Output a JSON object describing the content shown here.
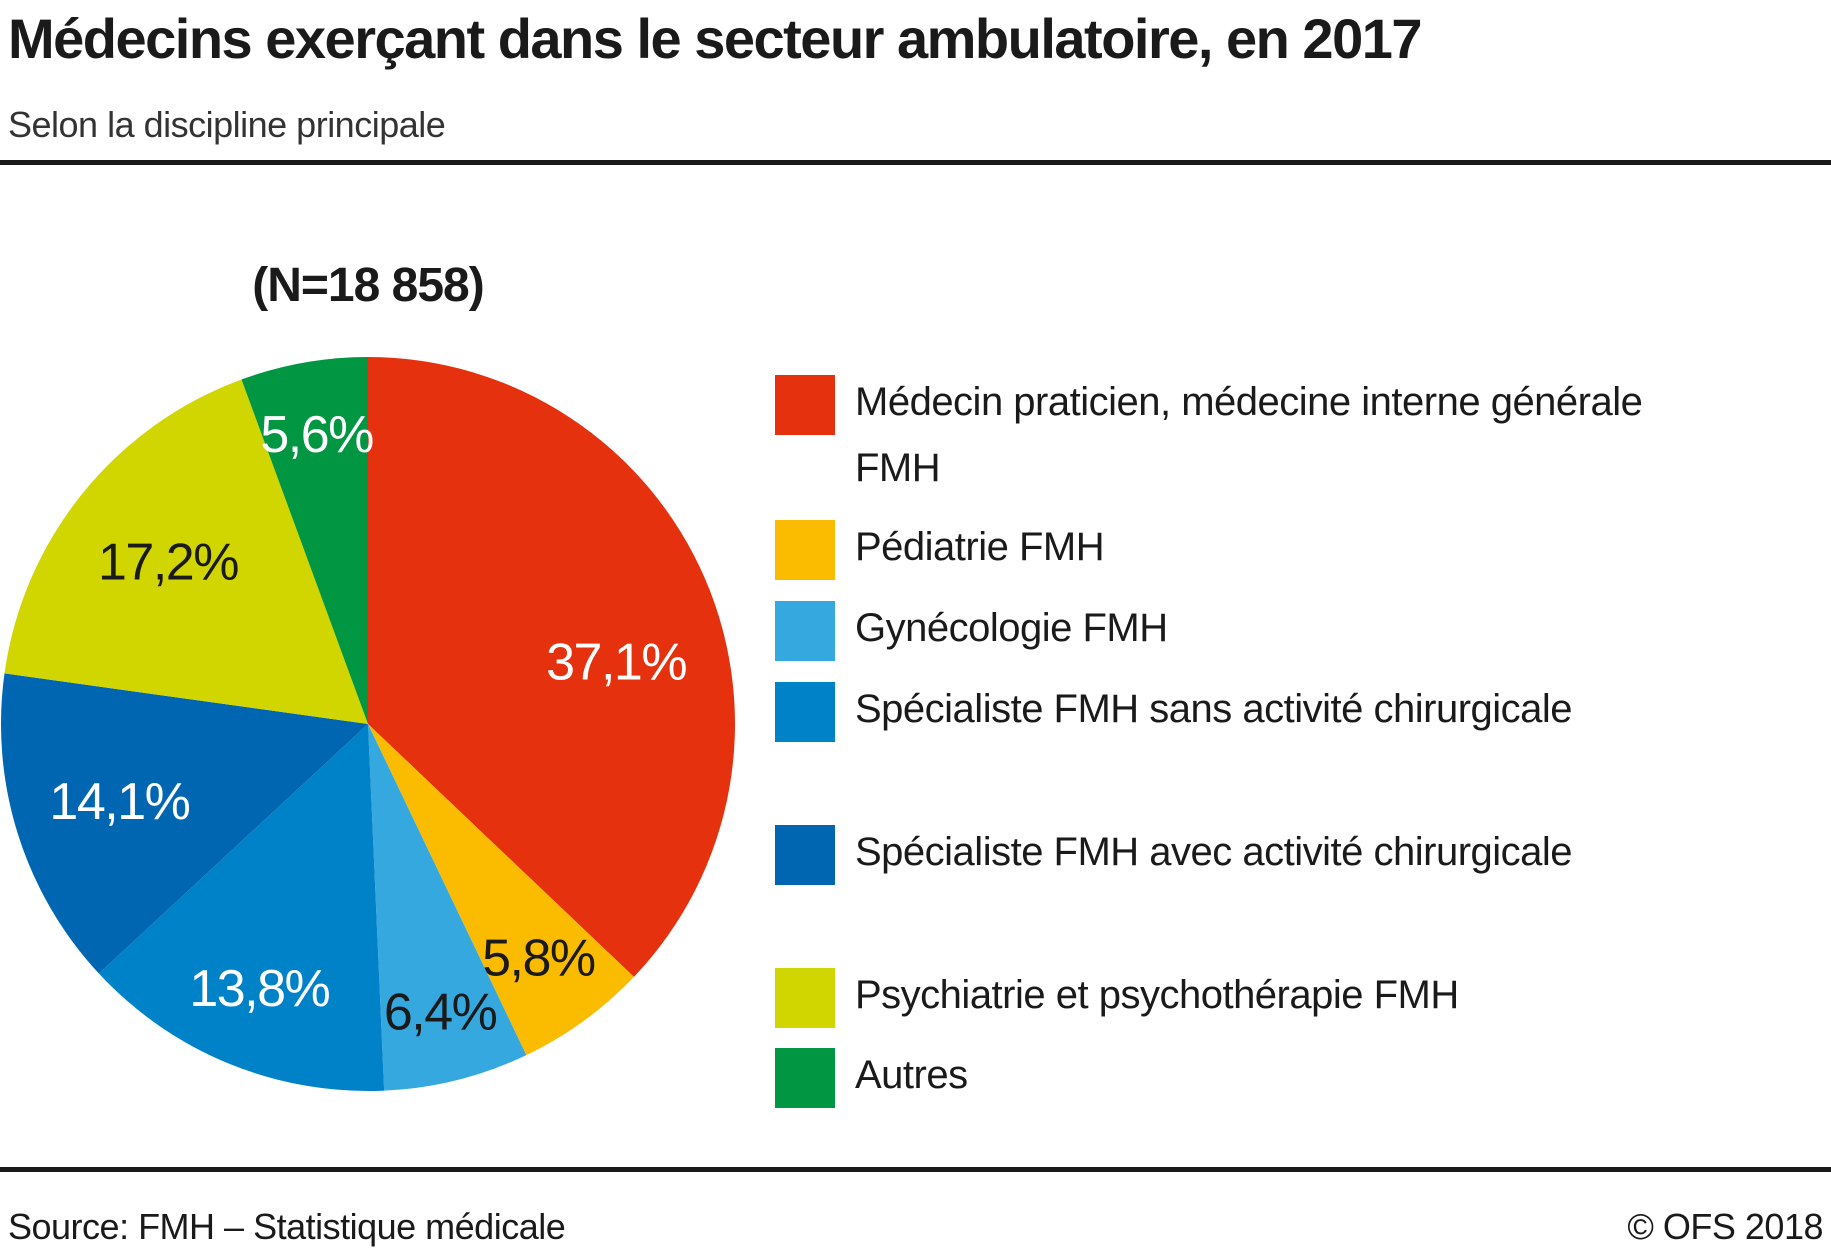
{
  "header": {
    "title": "Médecins exerçant dans le secteur ambulatoire, en 2017",
    "subtitle": "Selon la discipline principale"
  },
  "chart": {
    "n_label": "(N=18 858)"
  },
  "chart_data": {
    "type": "pie",
    "title": "(N=18 858)",
    "total_label": "(N=18 858)",
    "unit": "%",
    "start_angle_deg": -90,
    "direction": "clockwise",
    "legend_position": "right",
    "slices": [
      {
        "label": "Médecin praticien, médecine interne générale FMH",
        "value": 37.1,
        "display": "37,1%",
        "color": "#e5310d",
        "label_color": "#ffffff",
        "label_r": 0.7,
        "label_offset": [
          12,
          40
        ]
      },
      {
        "label": "Pédiatrie FMH",
        "value": 5.8,
        "display": "5,8%",
        "color": "#fbbc00",
        "label_color": "#1a1a1a",
        "label_r": 0.79,
        "label_offset": [
          0,
          0
        ]
      },
      {
        "label": "Gynécologie FMH",
        "value": 6.4,
        "display": "6,4%",
        "color": "#35a8e0",
        "label_color": "#1a1a1a",
        "label_r": 0.81,
        "label_offset": [
          0,
          0
        ]
      },
      {
        "label": "Spécialiste FMH sans activité chirurgicale",
        "value": 13.8,
        "display": "13,8%",
        "color": "#0082c8",
        "label_color": "#ffffff",
        "label_r": 0.78,
        "label_offset": [
          0,
          0
        ]
      },
      {
        "label": "Spécialiste FMH avec activité chirurgicale",
        "value": 14.1,
        "display": "14,1%",
        "color": "#0066b2",
        "label_color": "#ffffff",
        "label_r": 0.71,
        "label_offset": [
          0,
          0
        ]
      },
      {
        "label": "Psychiatrie et psychothérapie FMH",
        "value": 17.2,
        "display": "17,2%",
        "color": "#d2d600",
        "label_color": "#1a1a1a",
        "label_r": 0.7,
        "label_offset": [
          0,
          0
        ]
      },
      {
        "label": "Autres",
        "value": 5.6,
        "display": "5,6%",
        "color": "#009642",
        "label_color": "#ffffff",
        "label_r": 0.8,
        "label_offset": [
          0,
          0
        ]
      }
    ]
  },
  "legend": {
    "items": [
      {
        "label": "Médecin praticien, médecine interne générale FMH"
      },
      {
        "label": "Pédiatrie FMH"
      },
      {
        "label": "Gynécologie FMH"
      },
      {
        "label": "Spécialiste FMH sans activité chirurgicale"
      },
      {
        "label": "Spécialiste FMH avec activité chirurgicale"
      },
      {
        "label": "Psychiatrie et psychothérapie FMH"
      },
      {
        "label": "Autres"
      }
    ]
  },
  "footer": {
    "source": "Source: FMH – Statistique médicale",
    "copyright": "© OFS 2018"
  }
}
